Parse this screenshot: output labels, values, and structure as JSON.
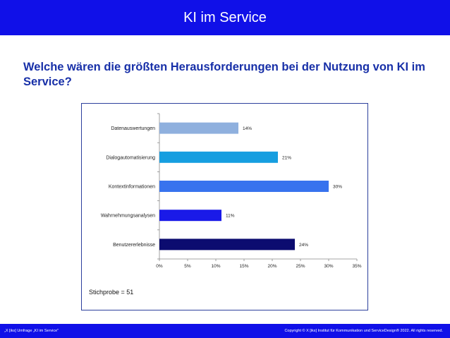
{
  "header": {
    "title": "KI im Service"
  },
  "question": "Welche wären die größten Herausforderungen bei der Nutzung von KI im Service?",
  "sample_note": "Stichprobe = 51",
  "footer": {
    "left": "„X [iks] Umfrage „KI im Service\"",
    "right": "Copyright © X [iks] Institut für Kommunikation und ServiceDesign® 2022. All rights reserved."
  },
  "colors": {
    "bar_blue": "#1010e8",
    "box_border": "#2c3f9c"
  },
  "chart_data": {
    "type": "bar",
    "orientation": "horizontal",
    "categories": [
      "Datenauswertungen",
      "Dialogautomatisierung",
      "Kontextinformationen",
      "Wahrnehmungsanalysen",
      "Benutzererlebnisse"
    ],
    "values": [
      14,
      21,
      30,
      11,
      24
    ],
    "value_labels": [
      "14%",
      "21%",
      "30%",
      "11%",
      "24%"
    ],
    "colors": [
      "#8fb0de",
      "#169ee0",
      "#3873ee",
      "#1a1ae8",
      "#0c0c70"
    ],
    "xlim": [
      0,
      35
    ],
    "xticks": [
      "0%",
      "5%",
      "10%",
      "15%",
      "20%",
      "25%",
      "30%",
      "35%"
    ],
    "grid": false
  }
}
